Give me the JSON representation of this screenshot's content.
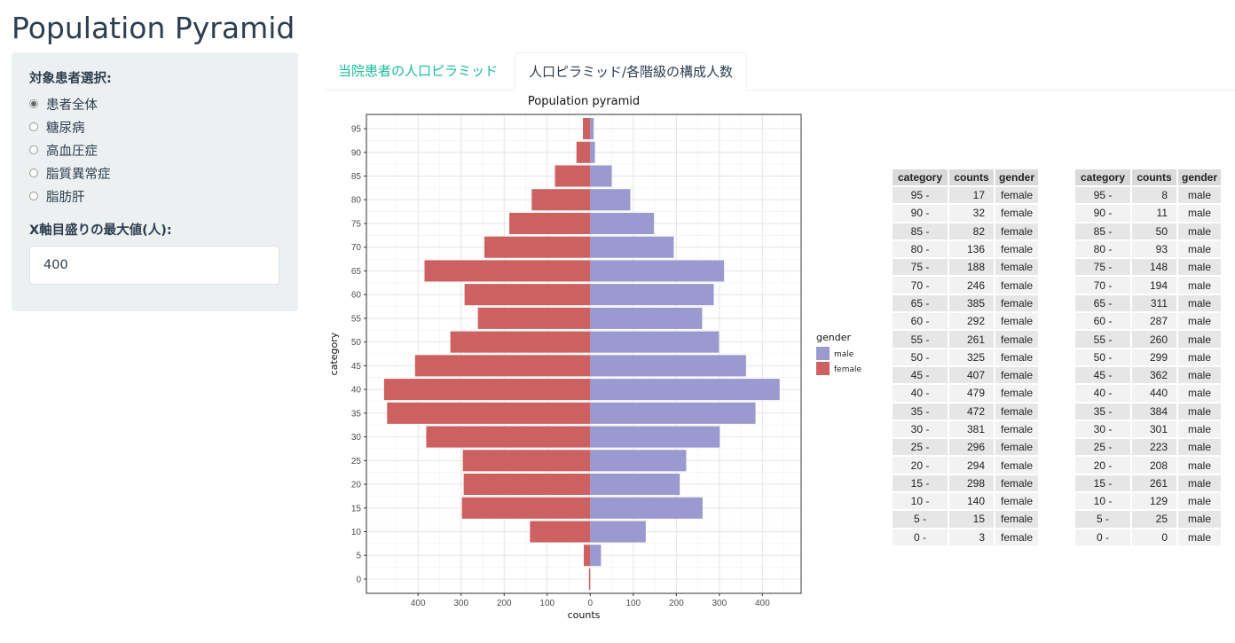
{
  "app": {
    "title": "Population Pyramid"
  },
  "sidebar": {
    "patient_label": "対象患者選択:",
    "options": [
      "患者全体",
      "糖尿病",
      "高血圧症",
      "脂質異常症",
      "脂肪肝"
    ],
    "selected_index": 0,
    "xmax_label": "X軸目盛りの最大値(人):",
    "xmax_value": "400"
  },
  "tabs": [
    {
      "label": "当院患者の人口ピラミッド",
      "active": false
    },
    {
      "label": "人口ピラミッド/各階級の構成人数",
      "active": true
    }
  ],
  "chart_data": {
    "type": "bar",
    "orientation": "horizontal",
    "title": "Population pyramid",
    "xlabel": "counts",
    "ylabel": "category",
    "categories": [
      "0",
      "5",
      "10",
      "15",
      "20",
      "25",
      "30",
      "35",
      "40",
      "45",
      "50",
      "55",
      "60",
      "65",
      "70",
      "75",
      "80",
      "85",
      "90",
      "95"
    ],
    "series": [
      {
        "name": "male",
        "color": "#9a9ad0",
        "values": [
          0,
          25,
          129,
          261,
          208,
          223,
          301,
          384,
          440,
          362,
          299,
          260,
          287,
          311,
          194,
          148,
          93,
          50,
          11,
          8
        ]
      },
      {
        "name": "female",
        "color": "#cd6060",
        "values": [
          3,
          15,
          140,
          298,
          294,
          296,
          381,
          472,
          479,
          407,
          325,
          261,
          292,
          385,
          246,
          188,
          136,
          82,
          32,
          17
        ]
      }
    ],
    "x_ticks": [
      "400",
      "300",
      "200",
      "100",
      "0",
      "100",
      "200",
      "300",
      "400"
    ],
    "xlim": [
      -520,
      490
    ],
    "grid": true,
    "legend": {
      "title": "gender",
      "position": "right",
      "entries": [
        "male",
        "female"
      ]
    }
  },
  "tables": {
    "headers": [
      "category",
      "counts",
      "gender"
    ],
    "female": [
      [
        "95 -",
        "17",
        "female"
      ],
      [
        "90 -",
        "32",
        "female"
      ],
      [
        "85 -",
        "82",
        "female"
      ],
      [
        "80 -",
        "136",
        "female"
      ],
      [
        "75 -",
        "188",
        "female"
      ],
      [
        "70 -",
        "246",
        "female"
      ],
      [
        "65 -",
        "385",
        "female"
      ],
      [
        "60 -",
        "292",
        "female"
      ],
      [
        "55 -",
        "261",
        "female"
      ],
      [
        "50 -",
        "325",
        "female"
      ],
      [
        "45 -",
        "407",
        "female"
      ],
      [
        "40 -",
        "479",
        "female"
      ],
      [
        "35 -",
        "472",
        "female"
      ],
      [
        "30 -",
        "381",
        "female"
      ],
      [
        "25 -",
        "296",
        "female"
      ],
      [
        "20 -",
        "294",
        "female"
      ],
      [
        "15 -",
        "298",
        "female"
      ],
      [
        "10 -",
        "140",
        "female"
      ],
      [
        "5 -",
        "15",
        "female"
      ],
      [
        "0 -",
        "3",
        "female"
      ]
    ],
    "male": [
      [
        "95 -",
        "8",
        "male"
      ],
      [
        "90 -",
        "11",
        "male"
      ],
      [
        "85 -",
        "50",
        "male"
      ],
      [
        "80 -",
        "93",
        "male"
      ],
      [
        "75 -",
        "148",
        "male"
      ],
      [
        "70 -",
        "194",
        "male"
      ],
      [
        "65 -",
        "311",
        "male"
      ],
      [
        "60 -",
        "287",
        "male"
      ],
      [
        "55 -",
        "260",
        "male"
      ],
      [
        "50 -",
        "299",
        "male"
      ],
      [
        "45 -",
        "362",
        "male"
      ],
      [
        "40 -",
        "440",
        "male"
      ],
      [
        "35 -",
        "384",
        "male"
      ],
      [
        "30 -",
        "301",
        "male"
      ],
      [
        "25 -",
        "223",
        "male"
      ],
      [
        "20 -",
        "208",
        "male"
      ],
      [
        "15 -",
        "261",
        "male"
      ],
      [
        "10 -",
        "129",
        "male"
      ],
      [
        "5 -",
        "25",
        "male"
      ],
      [
        "0 -",
        "0",
        "male"
      ]
    ]
  }
}
